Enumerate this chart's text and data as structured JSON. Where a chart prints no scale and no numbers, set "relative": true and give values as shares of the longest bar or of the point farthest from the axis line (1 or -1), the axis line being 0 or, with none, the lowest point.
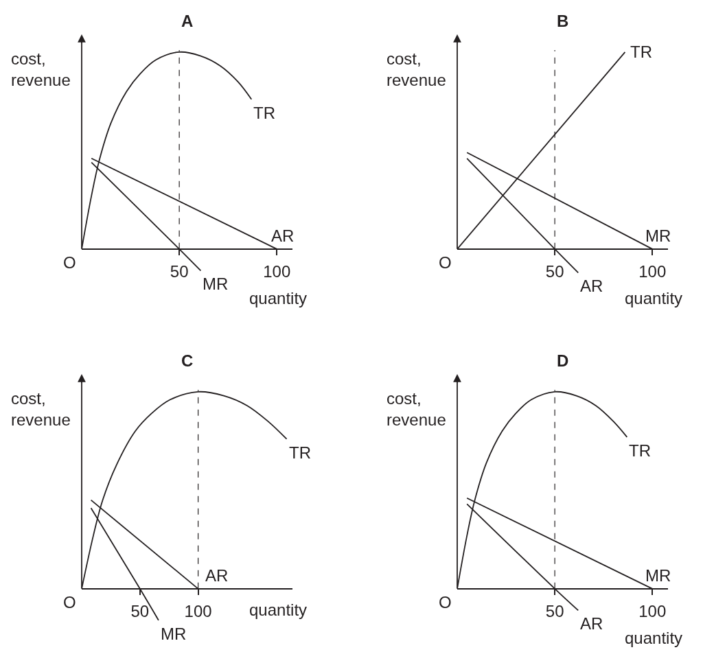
{
  "chart_data": [
    {
      "type": "line",
      "title": "A",
      "xlabel": "quantity",
      "ylabel": "cost, revenue",
      "relative": true,
      "xlim": [
        0,
        108
      ],
      "xticks": [
        50,
        100
      ],
      "grid": false,
      "legend": false,
      "marker": "none",
      "line_style": "solid",
      "annotations": [
        "O"
      ],
      "ref_lines": [
        {
          "axis": "x",
          "value": 50,
          "line_style": "dashed",
          "color": "#231f20"
        }
      ],
      "series": [
        {
          "name": "TR",
          "color": "#231f20",
          "x": [
            0,
            5,
            9,
            15,
            23,
            30,
            38,
            50,
            61,
            71,
            80,
            87
          ],
          "values": [
            0,
            0.27,
            0.45,
            0.64,
            0.8,
            0.89,
            0.96,
            1,
            0.98,
            0.93,
            0.85,
            0.76
          ]
        },
        {
          "name": "AR",
          "color": "#231f20",
          "x": [
            5,
            100
          ],
          "values": [
            0.46,
            0
          ]
        },
        {
          "name": "MR",
          "color": "#231f20",
          "x": [
            5,
            50,
            61
          ],
          "values": [
            0.44,
            0,
            -0.11
          ]
        }
      ]
    },
    {
      "type": "line",
      "title": "B",
      "xlabel": "quantity",
      "ylabel": "cost, revenue",
      "relative": true,
      "xlim": [
        0,
        108
      ],
      "xticks": [
        50,
        100
      ],
      "grid": false,
      "legend": false,
      "marker": "none",
      "line_style": "solid",
      "annotations": [
        "O"
      ],
      "ref_lines": [
        {
          "axis": "x",
          "value": 50,
          "line_style": "dashed",
          "color": "#231f20"
        }
      ],
      "series": [
        {
          "name": "TR",
          "color": "#231f20",
          "x": [
            0,
            86
          ],
          "values": [
            0,
            1
          ]
        },
        {
          "name": "MR",
          "color": "#231f20",
          "x": [
            5,
            100
          ],
          "values": [
            0.49,
            0
          ]
        },
        {
          "name": "AR",
          "color": "#231f20",
          "x": [
            5,
            50,
            62
          ],
          "values": [
            0.46,
            0,
            -0.12
          ]
        }
      ]
    },
    {
      "type": "line",
      "title": "C",
      "xlabel": "quantity",
      "ylabel": "cost, revenue",
      "relative": true,
      "xlim": [
        0,
        181
      ],
      "xticks": [
        50,
        100
      ],
      "grid": false,
      "legend": false,
      "marker": "none",
      "line_style": "solid",
      "annotations": [
        "O"
      ],
      "ref_lines": [
        {
          "axis": "x",
          "value": 100,
          "line_style": "dashed",
          "color": "#231f20"
        }
      ],
      "series": [
        {
          "name": "TR",
          "color": "#231f20",
          "x": [
            0,
            10,
            18,
            30,
            46,
            60,
            76,
            100,
            122,
            142,
            160,
            176
          ],
          "values": [
            0,
            0.27,
            0.45,
            0.63,
            0.8,
            0.89,
            0.96,
            1,
            0.98,
            0.93,
            0.85,
            0.76
          ]
        },
        {
          "name": "AR",
          "color": "#231f20",
          "x": [
            8,
            100
          ],
          "values": [
            0.45,
            0
          ]
        },
        {
          "name": "MR",
          "color": "#231f20",
          "x": [
            8,
            50,
            66
          ],
          "values": [
            0.41,
            0,
            -0.16
          ]
        }
      ]
    },
    {
      "type": "line",
      "title": "D",
      "xlabel": "quantity",
      "ylabel": "cost, revenue",
      "relative": true,
      "xlim": [
        0,
        108
      ],
      "xticks": [
        50,
        100
      ],
      "grid": false,
      "legend": false,
      "marker": "none",
      "line_style": "solid",
      "annotations": [
        "O"
      ],
      "ref_lines": [
        {
          "axis": "x",
          "value": 50,
          "line_style": "dashed",
          "color": "#231f20"
        }
      ],
      "series": [
        {
          "name": "TR",
          "color": "#231f20",
          "x": [
            0,
            5,
            9,
            15,
            23,
            30,
            38,
            50,
            61,
            71,
            80,
            87
          ],
          "values": [
            0,
            0.27,
            0.45,
            0.64,
            0.8,
            0.89,
            0.96,
            1,
            0.98,
            0.93,
            0.85,
            0.77
          ]
        },
        {
          "name": "MR",
          "color": "#231f20",
          "x": [
            5,
            100
          ],
          "values": [
            0.46,
            0
          ]
        },
        {
          "name": "AR",
          "color": "#231f20",
          "x": [
            5,
            50,
            62
          ],
          "values": [
            0.43,
            0,
            -0.11
          ]
        }
      ]
    }
  ]
}
